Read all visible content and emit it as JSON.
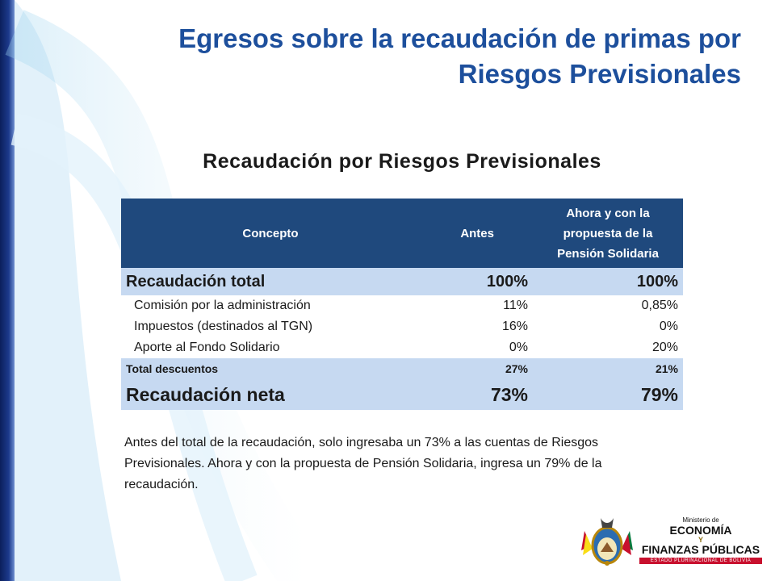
{
  "title": {
    "line1": "Egresos sobre la recaudación de primas por",
    "line2": "Riesgos Previsionales"
  },
  "table": {
    "heading": "Recaudación por Riesgos Previsionales",
    "columns": {
      "concepto": "Concepto",
      "antes": "Antes",
      "ahora_line1": "Ahora y con la",
      "ahora_line2": "propuesta de la",
      "ahora_line3": "Pensión Solidaria"
    },
    "rows": [
      {
        "label": "Recaudación total",
        "antes": "100%",
        "ahora": "100%"
      },
      {
        "label": "Comisión por la administración",
        "antes": "11%",
        "ahora": "0,85%"
      },
      {
        "label": "Impuestos (destinados al TGN)",
        "antes": "16%",
        "ahora": "0%"
      },
      {
        "label": "Aporte al Fondo Solidario",
        "antes": "0%",
        "ahora": "20%"
      },
      {
        "label": "Total descuentos",
        "antes": "27%",
        "ahora": "21%"
      },
      {
        "label": "Recaudación neta",
        "antes": "73%",
        "ahora": "79%"
      }
    ]
  },
  "note": "Antes del total de la recaudación, solo ingresaba un 73% a las cuentas de Riesgos Previsionales. Ahora y con la propuesta de Pensión Solidaria, ingresa un 79% de la recaudación.",
  "logo": {
    "ministerio": "Ministerio de",
    "economia": "ECONOMÍA",
    "y": "Y",
    "finanzas": "FINANZAS PÚBLICAS",
    "estado": "ESTADO PLURINACIONAL DE BOLIVIA"
  },
  "colors": {
    "title": "#1d4f9c",
    "header_bg": "#1f497d",
    "row_highlight": "#c6d9f1",
    "left_band": "#0b1f5c"
  }
}
